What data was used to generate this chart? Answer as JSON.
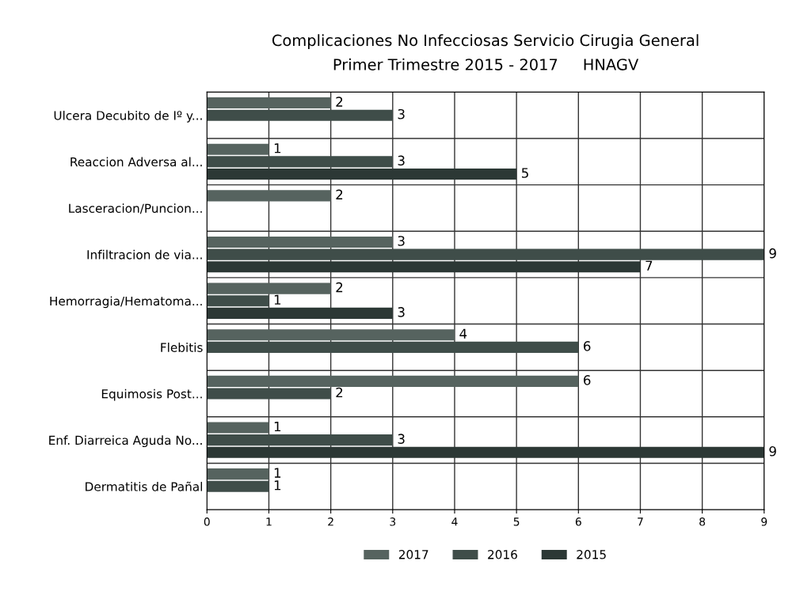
{
  "chart_data": {
    "type": "bar",
    "orientation": "horizontal",
    "title": "Complicaciones No Infecciosas Servicio Cirugia General\nPrimer Trimestre 2015 - 2017     HNAGV",
    "categories": [
      "Ulcera Decubito de Iº y...",
      "Reaccion Adversa al...",
      "Lasceracion/Puncion...",
      "Infiltracion de via...",
      "Hemorragia/Hematoma...",
      "Flebitis",
      "Equimosis Post...",
      "Enf. Diarreica Aguda No...",
      "Dermatitis de Pañal"
    ],
    "series": [
      {
        "name": "2017",
        "color": "#56635f",
        "values": [
          2,
          1,
          2,
          3,
          2,
          4,
          6,
          1,
          1
        ]
      },
      {
        "name": "2016",
        "color": "#3f4d49",
        "values": [
          3,
          3,
          null,
          9,
          1,
          6,
          2,
          3,
          1
        ]
      },
      {
        "name": "2015",
        "color": "#2c3835",
        "values": [
          null,
          5,
          null,
          7,
          3,
          null,
          null,
          9,
          null
        ]
      }
    ],
    "xlim": [
      0,
      9
    ],
    "xticks": [
      0,
      1,
      2,
      3,
      4,
      5,
      6,
      7,
      8,
      9
    ],
    "grid": true,
    "legend": "bottom",
    "data_labels": true
  }
}
